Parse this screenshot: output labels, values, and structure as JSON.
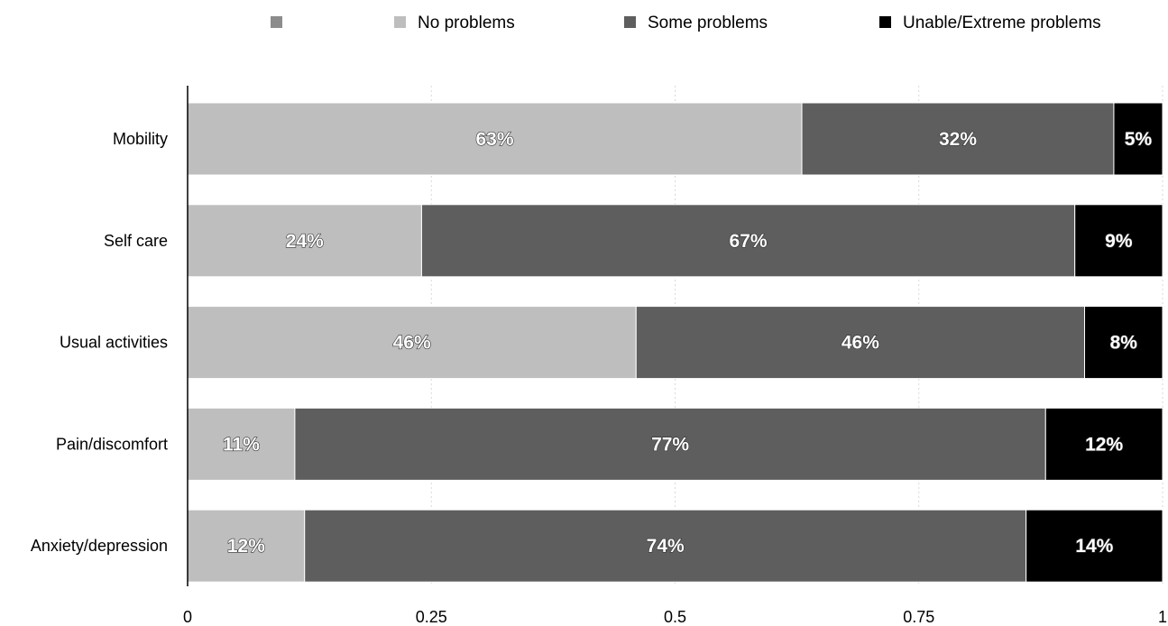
{
  "chart_data": {
    "type": "bar",
    "orientation": "horizontal",
    "stacked": true,
    "categories": [
      "Mobility",
      "Self care",
      "Usual activities",
      "Pain/discomfort",
      "Anxiety/depression"
    ],
    "series": [
      {
        "name": "No problems",
        "color": "#bebebe",
        "values": [
          0.63,
          0.24,
          0.46,
          0.11,
          0.12
        ],
        "labels": [
          "63%",
          "24%",
          "46%",
          "11%",
          "12%"
        ]
      },
      {
        "name": "Some problems",
        "color": "#5e5e5e",
        "values": [
          0.32,
          0.67,
          0.46,
          0.77,
          0.74
        ],
        "labels": [
          "32%",
          "67%",
          "46%",
          "77%",
          "74%"
        ]
      },
      {
        "name": "Unable/Extreme problems",
        "color": "#000000",
        "values": [
          0.05,
          0.09,
          0.08,
          0.12,
          0.14
        ],
        "labels": [
          "5%",
          "9%",
          "8%",
          "12%",
          "14%"
        ]
      }
    ],
    "legend_extra_swatch_color": "#8c8c8c",
    "xlim": [
      0,
      1
    ],
    "xticks": [
      0,
      0.25,
      0.5,
      0.75,
      1
    ],
    "xtick_labels": [
      "0",
      "0.25",
      "0.5",
      "0.75",
      "1"
    ],
    "grid": true,
    "legend": "top"
  }
}
